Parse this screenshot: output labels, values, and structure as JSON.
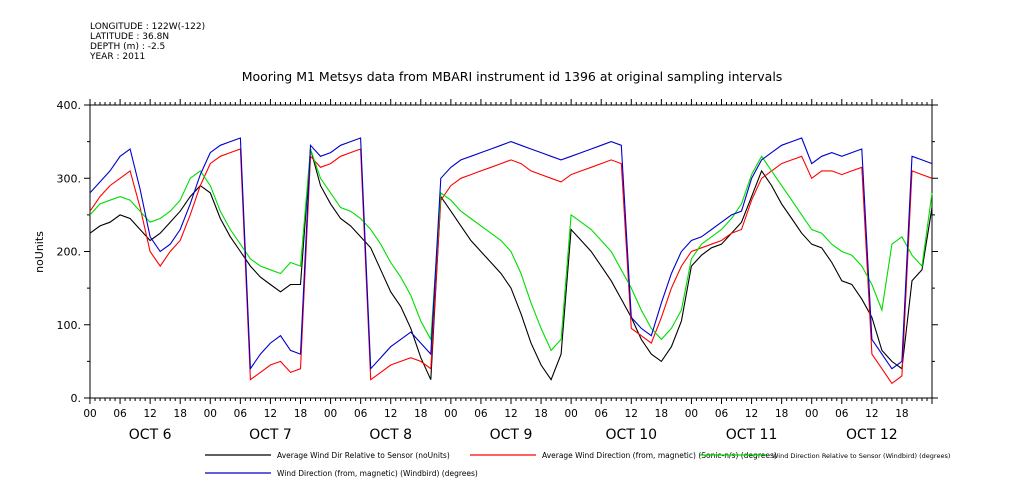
{
  "header": {
    "lines": [
      "LONGITUDE : 122W(-122)",
      "LATITUDE : 36.8N",
      "DEPTH (m) : -2.5",
      "YEAR : 2011"
    ]
  },
  "chart_data": {
    "type": "line",
    "title": "Mooring M1 Metsys data from MBARI instrument id 1396 at original sampling intervals",
    "ylabel": "noUnits",
    "xlabel": "",
    "ylim": [
      0,
      400
    ],
    "yticks": [
      0,
      100,
      200,
      300,
      400
    ],
    "ytick_labels": [
      "0.",
      "100.",
      "200.",
      "300.",
      "400."
    ],
    "x_units": "hours since OCT 6 00:00",
    "xlim": [
      0,
      168
    ],
    "hour_tick_labels": [
      "00",
      "06",
      "12",
      "18"
    ],
    "day_labels": [
      "OCT 6",
      "OCT 7",
      "OCT 8",
      "OCT 9",
      "OCT 10",
      "OCT 11",
      "OCT 12"
    ],
    "grid": false,
    "legend_position": "bottom",
    "series": [
      {
        "name": "Average Wind Dir Relative to Sensor (noUnits)",
        "color": "#000000",
        "x": [
          0,
          2,
          4,
          6,
          8,
          10,
          12,
          14,
          16,
          18,
          20,
          22,
          24,
          26,
          28,
          30,
          32,
          34,
          36,
          38,
          40,
          42,
          44,
          46,
          48,
          50,
          52,
          54,
          56,
          58,
          60,
          62,
          64,
          66,
          68,
          70,
          72,
          74,
          76,
          78,
          80,
          82,
          84,
          86,
          88,
          90,
          92,
          94,
          96,
          98,
          100,
          102,
          104,
          106,
          108,
          110,
          112,
          114,
          116,
          118,
          120,
          122,
          124,
          126,
          128,
          130,
          132,
          134,
          136,
          138,
          140,
          142,
          144,
          146,
          148,
          150,
          152,
          154,
          156,
          158,
          160,
          162,
          164,
          166,
          168
        ],
        "values": [
          225,
          235,
          240,
          250,
          245,
          230,
          215,
          225,
          240,
          255,
          275,
          290,
          280,
          245,
          220,
          200,
          180,
          165,
          155,
          145,
          155,
          155,
          340,
          290,
          265,
          245,
          235,
          220,
          205,
          175,
          145,
          125,
          95,
          55,
          25,
          275,
          255,
          235,
          215,
          200,
          185,
          170,
          150,
          115,
          75,
          45,
          25,
          60,
          230,
          215,
          200,
          180,
          160,
          135,
          110,
          80,
          60,
          50,
          70,
          105,
          180,
          195,
          205,
          210,
          225,
          240,
          275,
          310,
          290,
          265,
          245,
          225,
          210,
          205,
          185,
          160,
          155,
          135,
          110,
          65,
          50,
          40,
          160,
          175,
          260
        ]
      },
      {
        "name": "Average Wind Direction (from, magnetic) (Sonic-n/s) (degrees)",
        "color": "#ff0000",
        "x": [
          0,
          2,
          4,
          6,
          8,
          10,
          12,
          14,
          16,
          18,
          20,
          22,
          24,
          26,
          28,
          30,
          32,
          34,
          36,
          38,
          40,
          42,
          44,
          46,
          48,
          50,
          52,
          54,
          56,
          58,
          60,
          62,
          64,
          66,
          68,
          70,
          72,
          74,
          76,
          78,
          80,
          82,
          84,
          86,
          88,
          90,
          92,
          94,
          96,
          98,
          100,
          102,
          104,
          106,
          108,
          110,
          112,
          114,
          116,
          118,
          120,
          122,
          124,
          126,
          128,
          130,
          132,
          134,
          136,
          138,
          140,
          142,
          144,
          146,
          148,
          150,
          152,
          154,
          156,
          158,
          160,
          162,
          164,
          166,
          168
        ],
        "values": [
          255,
          275,
          290,
          300,
          310,
          260,
          200,
          180,
          200,
          215,
          250,
          290,
          320,
          330,
          335,
          340,
          25,
          35,
          45,
          50,
          35,
          40,
          330,
          315,
          320,
          330,
          335,
          340,
          25,
          35,
          45,
          50,
          55,
          50,
          40,
          270,
          290,
          300,
          305,
          310,
          315,
          320,
          325,
          320,
          310,
          305,
          300,
          295,
          305,
          310,
          315,
          320,
          325,
          320,
          95,
          85,
          75,
          110,
          150,
          180,
          200,
          205,
          210,
          215,
          225,
          230,
          270,
          300,
          310,
          320,
          325,
          330,
          300,
          310,
          310,
          305,
          310,
          315,
          60,
          40,
          20,
          30,
          310,
          305,
          300
        ]
      },
      {
        "name": "Wind Direction Relative to Sensor (Windbird) (degrees)",
        "color": "#00dd00",
        "x": [
          0,
          2,
          4,
          6,
          8,
          10,
          12,
          14,
          16,
          18,
          20,
          22,
          24,
          26,
          28,
          30,
          32,
          34,
          36,
          38,
          40,
          42,
          44,
          46,
          48,
          50,
          52,
          54,
          56,
          58,
          60,
          62,
          64,
          66,
          68,
          70,
          72,
          74,
          76,
          78,
          80,
          82,
          84,
          86,
          88,
          90,
          92,
          94,
          96,
          98,
          100,
          102,
          104,
          106,
          108,
          110,
          112,
          114,
          116,
          118,
          120,
          122,
          124,
          126,
          128,
          130,
          132,
          134,
          136,
          138,
          140,
          142,
          144,
          146,
          148,
          150,
          152,
          154,
          156,
          158,
          160,
          162,
          164,
          166,
          168
        ],
        "values": [
          250,
          265,
          270,
          275,
          270,
          255,
          240,
          245,
          255,
          270,
          300,
          310,
          290,
          255,
          230,
          210,
          190,
          180,
          175,
          170,
          185,
          180,
          340,
          300,
          280,
          260,
          255,
          245,
          230,
          210,
          185,
          165,
          140,
          105,
          80,
          280,
          270,
          255,
          245,
          235,
          225,
          215,
          200,
          170,
          130,
          95,
          65,
          80,
          250,
          240,
          230,
          215,
          200,
          175,
          150,
          120,
          95,
          80,
          95,
          120,
          190,
          210,
          220,
          230,
          245,
          265,
          305,
          330,
          310,
          290,
          270,
          250,
          230,
          225,
          210,
          200,
          195,
          180,
          155,
          120,
          210,
          220,
          195,
          180,
          280
        ]
      },
      {
        "name": "Wind Direction (from, magnetic) (Windbird) (degrees)",
        "color": "#0000cc",
        "x": [
          0,
          2,
          4,
          6,
          8,
          10,
          12,
          14,
          16,
          18,
          20,
          22,
          24,
          26,
          28,
          30,
          32,
          34,
          36,
          38,
          40,
          42,
          44,
          46,
          48,
          50,
          52,
          54,
          56,
          58,
          60,
          62,
          64,
          66,
          68,
          70,
          72,
          74,
          76,
          78,
          80,
          82,
          84,
          86,
          88,
          90,
          92,
          94,
          96,
          98,
          100,
          102,
          104,
          106,
          108,
          110,
          112,
          114,
          116,
          118,
          120,
          122,
          124,
          126,
          128,
          130,
          132,
          134,
          136,
          138,
          140,
          142,
          144,
          146,
          148,
          150,
          152,
          154,
          156,
          158,
          160,
          162,
          164,
          166,
          168
        ],
        "values": [
          280,
          295,
          310,
          330,
          340,
          285,
          220,
          200,
          210,
          230,
          265,
          305,
          335,
          345,
          350,
          355,
          40,
          60,
          75,
          85,
          65,
          60,
          345,
          330,
          335,
          345,
          350,
          355,
          40,
          55,
          70,
          80,
          90,
          75,
          60,
          300,
          315,
          325,
          330,
          335,
          340,
          345,
          350,
          345,
          340,
          335,
          330,
          325,
          330,
          335,
          340,
          345,
          350,
          345,
          110,
          95,
          85,
          130,
          170,
          200,
          215,
          220,
          230,
          240,
          250,
          255,
          300,
          325,
          335,
          345,
          350,
          355,
          320,
          330,
          335,
          330,
          335,
          340,
          80,
          60,
          40,
          50,
          330,
          325,
          320
        ]
      }
    ]
  }
}
